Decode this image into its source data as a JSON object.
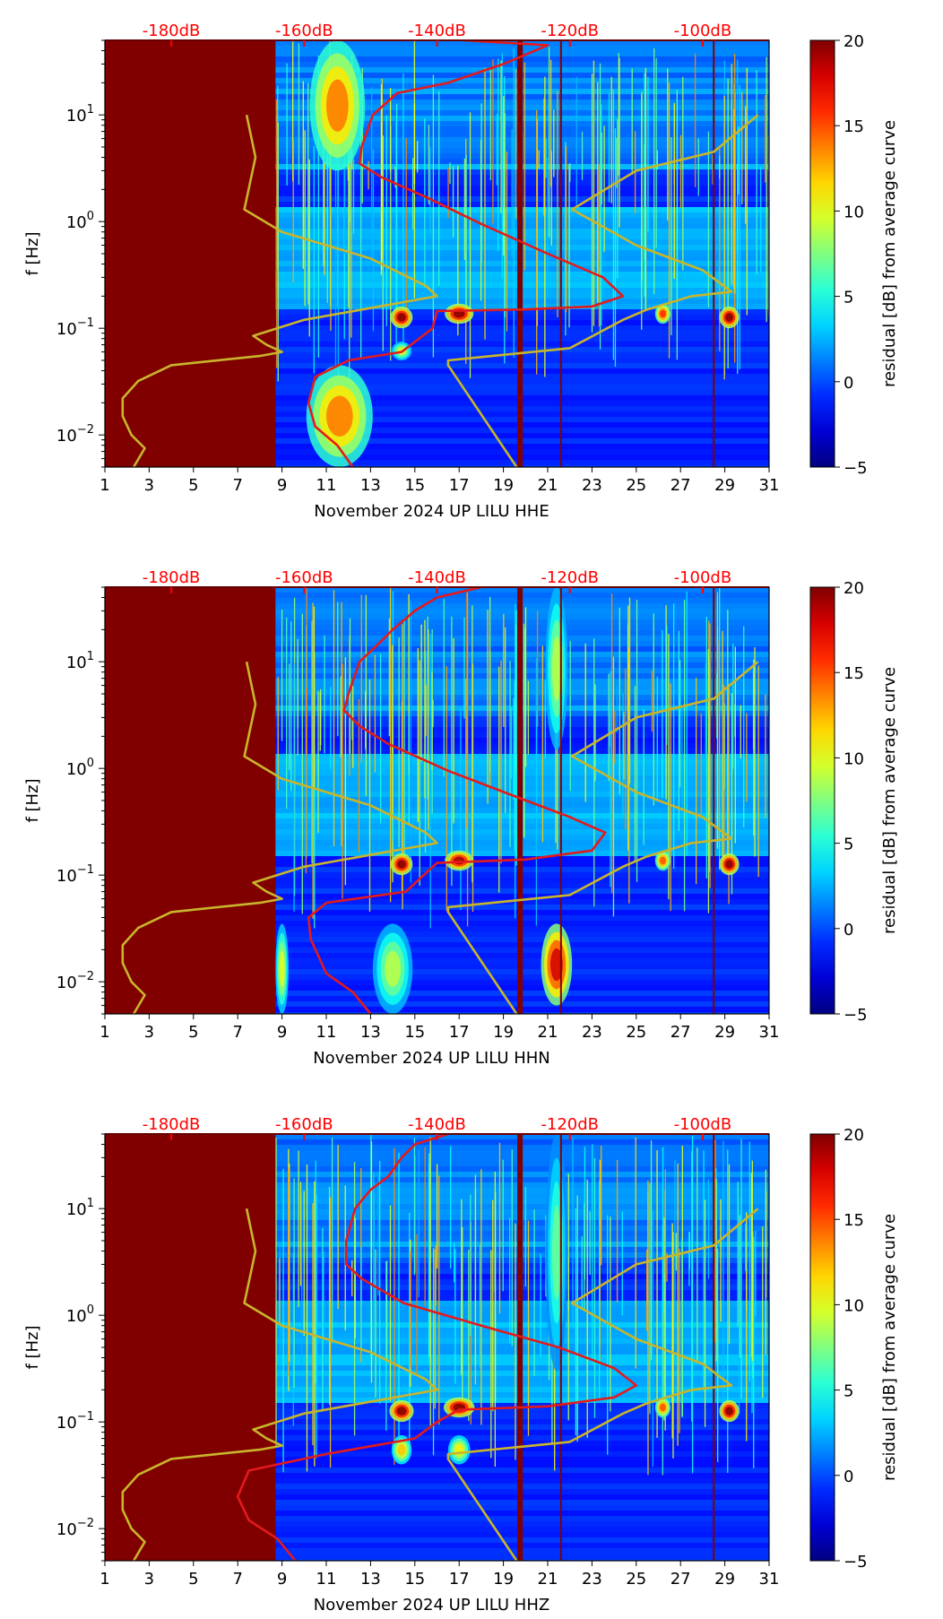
{
  "colors": {
    "background_fill": "#800000",
    "red_curve": "#e31a1c",
    "yellow_curve": "#c8b52c",
    "db_label": "#ff0000",
    "colormap": "jet"
  },
  "chart_data": [
    {
      "type": "heatmap",
      "xlabel": "November 2024 UP LILU  HHE",
      "ylabel": "f [Hz]",
      "colorbar_label": "residual [dB] from average curve",
      "colorbar_ticks": [
        "20",
        "15",
        "10",
        "5",
        "0",
        "−5"
      ],
      "color_range": [
        -5,
        20
      ],
      "x_ticks": [
        "1",
        "3",
        "5",
        "7",
        "9",
        "11",
        "13",
        "15",
        "17",
        "19",
        "21",
        "23",
        "25",
        "27",
        "29",
        "31"
      ],
      "xlim": [
        1,
        31
      ],
      "y_scale": "log",
      "ylim": [
        0.005,
        50
      ],
      "y_ticks": [
        {
          "value": 10,
          "base": "10",
          "exp": "1"
        },
        {
          "value": 1,
          "base": "10",
          "exp": "0"
        },
        {
          "value": 0.1,
          "base": "10",
          "exp": "−1"
        },
        {
          "value": 0.01,
          "base": "10",
          "exp": "−2"
        }
      ],
      "top_ticks": [
        {
          "x": 4,
          "label": "-180dB"
        },
        {
          "x": 10,
          "label": "-160dB"
        },
        {
          "x": 16,
          "label": "-140dB"
        },
        {
          "x": 22,
          "label": "-120dB"
        },
        {
          "x": 28,
          "label": "-100dB"
        }
      ],
      "no_data_before_day": 8.7,
      "red_curve": [
        [
          17.2,
          50
        ],
        [
          21,
          45
        ],
        [
          19,
          30
        ],
        [
          16.5,
          20
        ],
        [
          14.2,
          16
        ],
        [
          13.1,
          10
        ],
        [
          12.6,
          5
        ],
        [
          12.5,
          3.5
        ],
        [
          13.5,
          2.6
        ],
        [
          15.5,
          1.7
        ],
        [
          18,
          0.95
        ],
        [
          21,
          0.5
        ],
        [
          23.5,
          0.3
        ],
        [
          24.4,
          0.2
        ],
        [
          23,
          0.16
        ],
        [
          20,
          0.15
        ],
        [
          16,
          0.145
        ],
        [
          15.8,
          0.1
        ],
        [
          14.4,
          0.06
        ],
        [
          12,
          0.05
        ],
        [
          10.5,
          0.035
        ],
        [
          10.2,
          0.02
        ],
        [
          10.5,
          0.012
        ],
        [
          11.5,
          0.008
        ],
        [
          12.2,
          0.005
        ]
      ],
      "yellow_curve": [
        [
          7.4,
          10
        ],
        [
          7.8,
          4
        ],
        [
          7.3,
          1.3
        ],
        [
          9,
          0.8
        ],
        [
          13,
          0.45
        ],
        [
          15.5,
          0.25
        ],
        [
          16,
          0.2
        ],
        [
          10,
          0.12
        ],
        [
          7.7,
          0.085
        ],
        [
          8.3,
          0.07
        ],
        [
          9,
          0.06
        ],
        [
          8,
          0.055
        ],
        [
          4,
          0.045
        ],
        [
          2.5,
          0.032
        ],
        [
          1.8,
          0.022
        ],
        [
          1.8,
          0.015
        ],
        [
          2.2,
          0.01
        ],
        [
          2.8,
          0.0075
        ],
        [
          2.3,
          0.005
        ]
      ],
      "yellow_curve_2": [
        [
          30.5,
          10
        ],
        [
          28.5,
          4.5
        ],
        [
          25,
          3
        ],
        [
          22.1,
          1.3
        ],
        [
          25,
          0.6
        ],
        [
          28,
          0.35
        ],
        [
          29.3,
          0.22
        ],
        [
          27.5,
          0.2
        ],
        [
          25.5,
          0.15
        ],
        [
          24.4,
          0.12
        ],
        [
          22,
          0.065
        ],
        [
          16.5,
          0.05
        ],
        [
          16.5,
          0.045
        ],
        [
          19.6,
          0.005
        ]
      ],
      "bright_patches": [
        {
          "day": 11.5,
          "f_lo": 3.0,
          "f_hi": 50,
          "width": 2.5,
          "value": 14
        },
        {
          "day": 14.4,
          "f_lo": 0.1,
          "f_hi": 0.16,
          "width": 1.0,
          "value": 20
        },
        {
          "day": 17.0,
          "f_lo": 0.11,
          "f_hi": 0.17,
          "width": 1.3,
          "value": 20
        },
        {
          "day": 26.2,
          "f_lo": 0.11,
          "f_hi": 0.17,
          "width": 0.7,
          "value": 16
        },
        {
          "day": 29.2,
          "f_lo": 0.1,
          "f_hi": 0.16,
          "width": 0.9,
          "value": 20
        },
        {
          "day": 11.6,
          "f_lo": 0.005,
          "f_hi": 0.045,
          "width": 3.0,
          "value": 14
        },
        {
          "day": 14.4,
          "f_lo": 0.05,
          "f_hi": 0.075,
          "width": 0.9,
          "value": 10
        }
      ],
      "dark_columns": [
        19.75,
        21.6,
        28.5
      ]
    },
    {
      "type": "heatmap",
      "xlabel": "November 2024 UP LILU  HHN",
      "ylabel": "f [Hz]",
      "colorbar_label": "residual [dB] from average curve",
      "colorbar_ticks": [
        "20",
        "15",
        "10",
        "5",
        "0",
        "−5"
      ],
      "color_range": [
        -5,
        20
      ],
      "x_ticks": [
        "1",
        "3",
        "5",
        "7",
        "9",
        "11",
        "13",
        "15",
        "17",
        "19",
        "21",
        "23",
        "25",
        "27",
        "29",
        "31"
      ],
      "xlim": [
        1,
        31
      ],
      "y_scale": "log",
      "ylim": [
        0.005,
        50
      ],
      "y_ticks": [
        {
          "value": 10,
          "base": "10",
          "exp": "1"
        },
        {
          "value": 1,
          "base": "10",
          "exp": "0"
        },
        {
          "value": 0.1,
          "base": "10",
          "exp": "−1"
        },
        {
          "value": 0.01,
          "base": "10",
          "exp": "−2"
        }
      ],
      "top_ticks": [
        {
          "x": 4,
          "label": "-180dB"
        },
        {
          "x": 10,
          "label": "-160dB"
        },
        {
          "x": 16,
          "label": "-140dB"
        },
        {
          "x": 22,
          "label": "-120dB"
        },
        {
          "x": 28,
          "label": "-100dB"
        }
      ],
      "no_data_before_day": 8.7,
      "red_curve": [
        [
          18,
          50
        ],
        [
          16,
          40
        ],
        [
          15,
          30
        ],
        [
          14,
          20
        ],
        [
          13.4,
          15
        ],
        [
          12.5,
          10
        ],
        [
          12,
          5
        ],
        [
          11.8,
          3.5
        ],
        [
          12.5,
          2.5
        ],
        [
          13.8,
          1.7
        ],
        [
          16.5,
          0.95
        ],
        [
          19.5,
          0.55
        ],
        [
          22,
          0.35
        ],
        [
          23.6,
          0.25
        ],
        [
          23,
          0.17
        ],
        [
          20,
          0.14
        ],
        [
          16,
          0.13
        ],
        [
          15.4,
          0.1
        ],
        [
          14.6,
          0.07
        ],
        [
          11,
          0.055
        ],
        [
          10.2,
          0.04
        ],
        [
          10.3,
          0.025
        ],
        [
          11,
          0.012
        ],
        [
          12.2,
          0.008
        ],
        [
          13,
          0.005
        ]
      ],
      "yellow_curve": [
        [
          7.4,
          10
        ],
        [
          7.8,
          4
        ],
        [
          7.3,
          1.3
        ],
        [
          9,
          0.8
        ],
        [
          13,
          0.45
        ],
        [
          15.5,
          0.25
        ],
        [
          16,
          0.2
        ],
        [
          10,
          0.12
        ],
        [
          7.7,
          0.085
        ],
        [
          8.3,
          0.07
        ],
        [
          9,
          0.06
        ],
        [
          8,
          0.055
        ],
        [
          4,
          0.045
        ],
        [
          2.5,
          0.032
        ],
        [
          1.8,
          0.022
        ],
        [
          1.8,
          0.015
        ],
        [
          2.2,
          0.01
        ],
        [
          2.8,
          0.0075
        ],
        [
          2.3,
          0.005
        ]
      ],
      "yellow_curve_2": [
        [
          30.5,
          10
        ],
        [
          28.5,
          4.5
        ],
        [
          25,
          3
        ],
        [
          22.1,
          1.3
        ],
        [
          25,
          0.6
        ],
        [
          28,
          0.35
        ],
        [
          29.3,
          0.22
        ],
        [
          27.5,
          0.2
        ],
        [
          25.5,
          0.15
        ],
        [
          24.4,
          0.12
        ],
        [
          22,
          0.065
        ],
        [
          16.5,
          0.05
        ],
        [
          16.5,
          0.045
        ],
        [
          19.6,
          0.005
        ]
      ],
      "bright_patches": [
        {
          "day": 14.4,
          "f_lo": 0.1,
          "f_hi": 0.16,
          "width": 1.0,
          "value": 20
        },
        {
          "day": 17.0,
          "f_lo": 0.11,
          "f_hi": 0.17,
          "width": 1.3,
          "value": 19
        },
        {
          "day": 26.2,
          "f_lo": 0.11,
          "f_hi": 0.17,
          "width": 0.7,
          "value": 15
        },
        {
          "day": 29.2,
          "f_lo": 0.1,
          "f_hi": 0.16,
          "width": 0.9,
          "value": 20
        },
        {
          "day": 21.4,
          "f_lo": 0.006,
          "f_hi": 0.035,
          "width": 1.4,
          "value": 18
        },
        {
          "day": 21.4,
          "f_lo": 1.5,
          "f_hi": 50,
          "width": 1.0,
          "value": 9
        },
        {
          "day": 14.0,
          "f_lo": 0.005,
          "f_hi": 0.035,
          "width": 1.8,
          "value": 9
        },
        {
          "day": 9.0,
          "f_lo": 0.005,
          "f_hi": 0.035,
          "width": 0.6,
          "value": 10
        }
      ],
      "dark_columns": [
        19.75,
        21.6,
        28.5
      ]
    },
    {
      "type": "heatmap",
      "xlabel": "November 2024 UP LILU  HHZ",
      "ylabel": "f [Hz]",
      "colorbar_label": "residual [dB] from average curve",
      "colorbar_ticks": [
        "20",
        "15",
        "10",
        "5",
        "0",
        "−5"
      ],
      "color_range": [
        -5,
        20
      ],
      "x_ticks": [
        "1",
        "3",
        "5",
        "7",
        "9",
        "11",
        "13",
        "15",
        "17",
        "19",
        "21",
        "23",
        "25",
        "27",
        "29",
        "31"
      ],
      "xlim": [
        1,
        31
      ],
      "y_scale": "log",
      "ylim": [
        0.005,
        50
      ],
      "y_ticks": [
        {
          "value": 10,
          "base": "10",
          "exp": "1"
        },
        {
          "value": 1,
          "base": "10",
          "exp": "0"
        },
        {
          "value": 0.1,
          "base": "10",
          "exp": "−1"
        },
        {
          "value": 0.01,
          "base": "10",
          "exp": "−2"
        }
      ],
      "top_ticks": [
        {
          "x": 4,
          "label": "-180dB"
        },
        {
          "x": 10,
          "label": "-160dB"
        },
        {
          "x": 16,
          "label": "-140dB"
        },
        {
          "x": 22,
          "label": "-120dB"
        },
        {
          "x": 28,
          "label": "-100dB"
        }
      ],
      "no_data_before_day": 8.7,
      "red_curve": [
        [
          16.5,
          50
        ],
        [
          15,
          40
        ],
        [
          14.4,
          30
        ],
        [
          13.8,
          20
        ],
        [
          13,
          15
        ],
        [
          12.3,
          10
        ],
        [
          11.9,
          5
        ],
        [
          11.9,
          3
        ],
        [
          12.6,
          2.2
        ],
        [
          14.5,
          1.3
        ],
        [
          18,
          0.8
        ],
        [
          21.5,
          0.5
        ],
        [
          24,
          0.32
        ],
        [
          25,
          0.22
        ],
        [
          24,
          0.17
        ],
        [
          21,
          0.14
        ],
        [
          17,
          0.13
        ],
        [
          16,
          0.1
        ],
        [
          15,
          0.07
        ],
        [
          11,
          0.05
        ],
        [
          7.5,
          0.035
        ],
        [
          7,
          0.02
        ],
        [
          7.5,
          0.012
        ],
        [
          8.8,
          0.008
        ],
        [
          9.6,
          0.005
        ]
      ],
      "yellow_curve": [
        [
          7.4,
          10
        ],
        [
          7.8,
          4
        ],
        [
          7.3,
          1.3
        ],
        [
          9,
          0.8
        ],
        [
          13,
          0.45
        ],
        [
          15.5,
          0.25
        ],
        [
          16,
          0.2
        ],
        [
          10,
          0.12
        ],
        [
          7.7,
          0.085
        ],
        [
          8.3,
          0.07
        ],
        [
          9,
          0.06
        ],
        [
          8,
          0.055
        ],
        [
          4,
          0.045
        ],
        [
          2.5,
          0.032
        ],
        [
          1.8,
          0.022
        ],
        [
          1.8,
          0.015
        ],
        [
          2.2,
          0.01
        ],
        [
          2.8,
          0.0075
        ],
        [
          2.3,
          0.005
        ]
      ],
      "yellow_curve_2": [
        [
          30.5,
          10
        ],
        [
          28.5,
          4.5
        ],
        [
          25,
          3
        ],
        [
          22.1,
          1.3
        ],
        [
          25,
          0.6
        ],
        [
          28,
          0.35
        ],
        [
          29.3,
          0.22
        ],
        [
          27.5,
          0.2
        ],
        [
          25.5,
          0.15
        ],
        [
          24.4,
          0.12
        ],
        [
          22,
          0.065
        ],
        [
          16.5,
          0.05
        ],
        [
          16.5,
          0.045
        ],
        [
          19.6,
          0.005
        ]
      ],
      "bright_patches": [
        {
          "day": 14.4,
          "f_lo": 0.1,
          "f_hi": 0.16,
          "width": 1.1,
          "value": 20
        },
        {
          "day": 17.0,
          "f_lo": 0.11,
          "f_hi": 0.17,
          "width": 1.4,
          "value": 20
        },
        {
          "day": 26.2,
          "f_lo": 0.11,
          "f_hi": 0.17,
          "width": 0.7,
          "value": 15
        },
        {
          "day": 29.2,
          "f_lo": 0.1,
          "f_hi": 0.16,
          "width": 0.9,
          "value": 20
        },
        {
          "day": 21.4,
          "f_lo": 0.3,
          "f_hi": 50,
          "width": 1.0,
          "value": 7
        },
        {
          "day": 14.4,
          "f_lo": 0.04,
          "f_hi": 0.075,
          "width": 0.9,
          "value": 12
        },
        {
          "day": 17.0,
          "f_lo": 0.04,
          "f_hi": 0.075,
          "width": 1.0,
          "value": 11
        }
      ],
      "dark_columns": [
        19.75,
        21.6,
        28.5
      ]
    }
  ]
}
